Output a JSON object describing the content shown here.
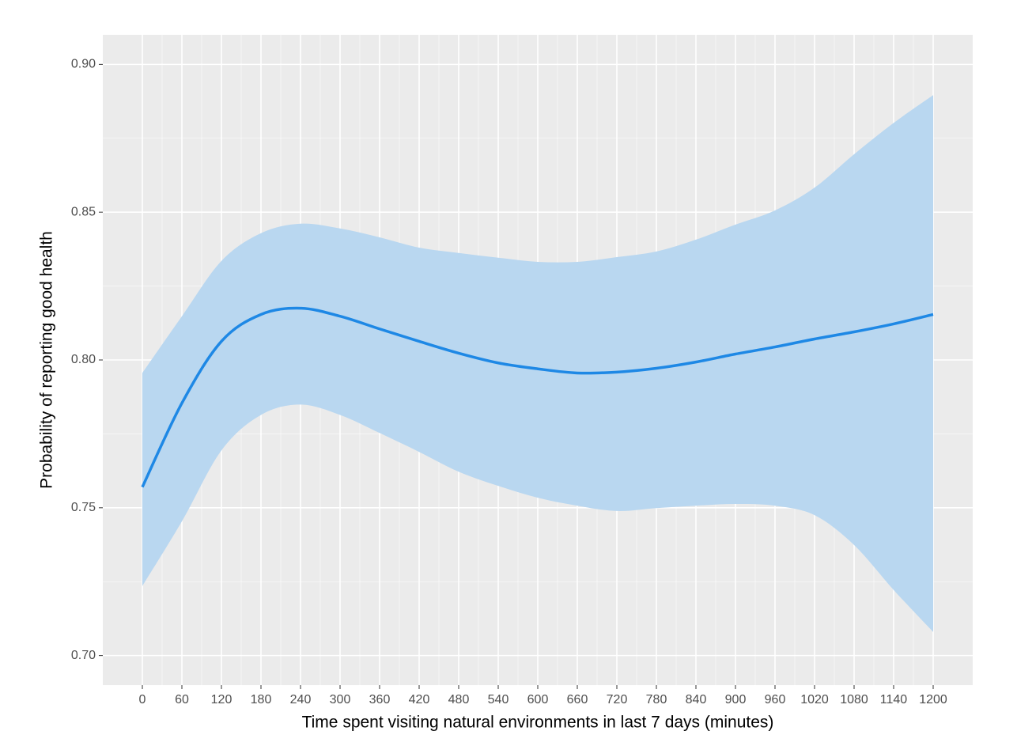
{
  "chart_data": {
    "type": "line_band",
    "x_label": "Time spent visiting natural environments in last 7 days (minutes)",
    "y_label": "Probability of reporting good health",
    "x": [
      0,
      60,
      120,
      180,
      240,
      300,
      360,
      420,
      480,
      540,
      600,
      660,
      720,
      780,
      840,
      900,
      960,
      1020,
      1080,
      1140,
      1200
    ],
    "values": [
      0.757,
      0.7854,
      0.8063,
      0.8154,
      0.8175,
      0.8148,
      0.8105,
      0.8063,
      0.8023,
      0.799,
      0.797,
      0.7956,
      0.7959,
      0.7972,
      0.7993,
      0.802,
      0.8044,
      0.8071,
      0.8095,
      0.8122,
      0.8154
    ],
    "upper": [
      0.7956,
      0.8148,
      0.8335,
      0.8429,
      0.8461,
      0.8445,
      0.8415,
      0.838,
      0.8362,
      0.8346,
      0.8332,
      0.8332,
      0.8348,
      0.8367,
      0.8407,
      0.8458,
      0.8506,
      0.8583,
      0.8696,
      0.8802,
      0.8896
    ],
    "lower": [
      0.7235,
      0.7454,
      0.7694,
      0.7814,
      0.7849,
      0.7814,
      0.7753,
      0.7689,
      0.7622,
      0.7574,
      0.7534,
      0.7507,
      0.7489,
      0.7499,
      0.7507,
      0.7513,
      0.7507,
      0.7475,
      0.7374,
      0.7222,
      0.708
    ],
    "color": "#1e88e5",
    "band_color": "#b9d7f0",
    "xlim": [
      -60,
      1260
    ],
    "ylim": [
      0.69,
      0.91
    ],
    "xticks": [
      0,
      60,
      120,
      180,
      240,
      300,
      360,
      420,
      480,
      540,
      600,
      660,
      720,
      780,
      840,
      900,
      960,
      1020,
      1080,
      1140,
      1200
    ],
    "yticks": [
      {
        "value": 0.7,
        "label": "0.70"
      },
      0.75,
      {
        "value": 0.8,
        "label": "0.80"
      },
      0.85,
      {
        "value": 0.9,
        "label": "0.90"
      }
    ],
    "grid": true
  }
}
